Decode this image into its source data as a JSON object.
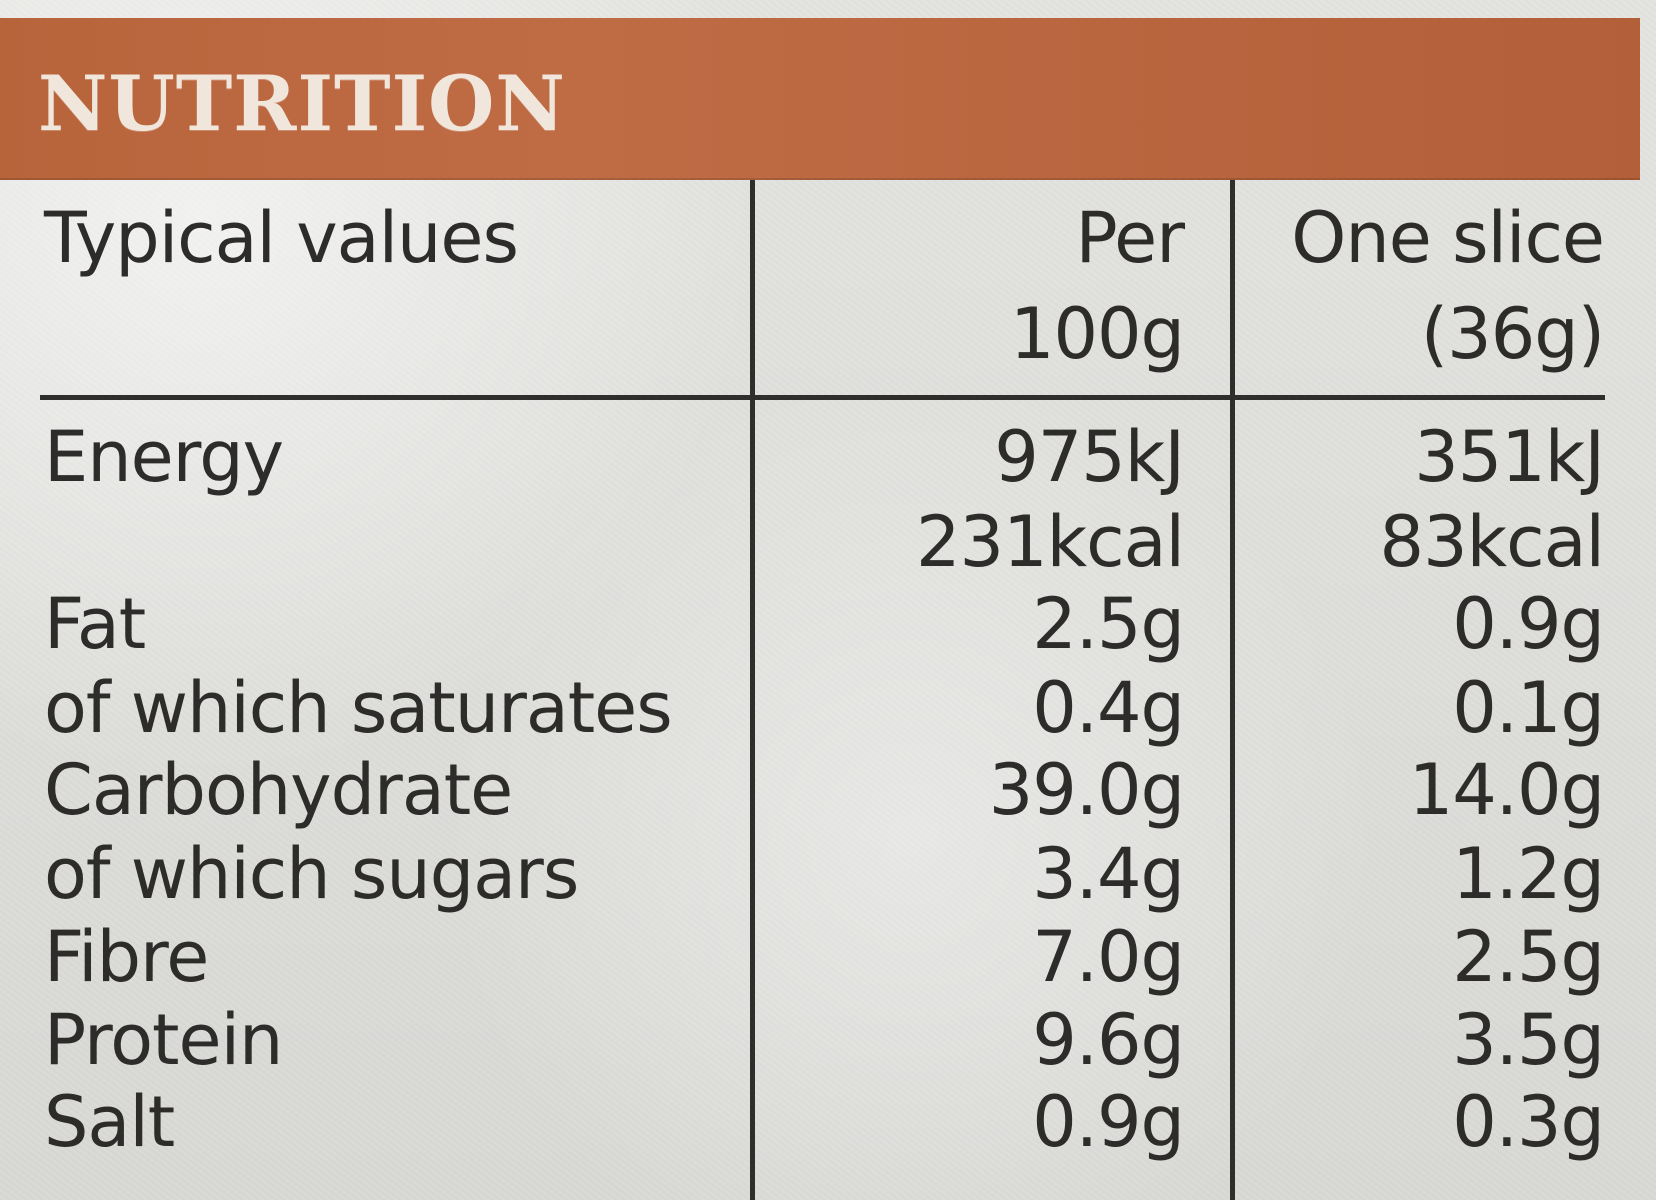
{
  "label": {
    "title": "NUTRITION",
    "columns": {
      "typical_values": "Typical values",
      "per_100g_line1": "Per",
      "per_100g_line2": "100g",
      "slice_line1": "One slice",
      "slice_line2": "(36g)"
    },
    "rows": {
      "energy": {
        "label": "Energy",
        "per100_kj": "975kJ",
        "per100_kcal": "231kcal",
        "slice_kj": "351kJ",
        "slice_kcal": "83kcal"
      },
      "fat": {
        "label": "Fat",
        "per100": "2.5g",
        "slice": "0.9g"
      },
      "saturates": {
        "label": "of which saturates",
        "per100": "0.4g",
        "slice": "0.1g"
      },
      "carbohydrate": {
        "label": "Carbohydrate",
        "per100": "39.0g",
        "slice": "14.0g"
      },
      "sugars": {
        "label": "of which sugars",
        "per100": "3.4g",
        "slice": "1.2g"
      },
      "fibre": {
        "label": "Fibre",
        "per100": "7.0g",
        "slice": "2.5g"
      },
      "protein": {
        "label": "Protein",
        "per100": "9.6g",
        "slice": "3.5g"
      },
      "salt": {
        "label": "Salt",
        "per100": "0.9g",
        "slice": "0.3g"
      }
    },
    "colors": {
      "header": "#b8643b",
      "text": "#2d2c2a",
      "background": "#e0e0dd"
    }
  }
}
